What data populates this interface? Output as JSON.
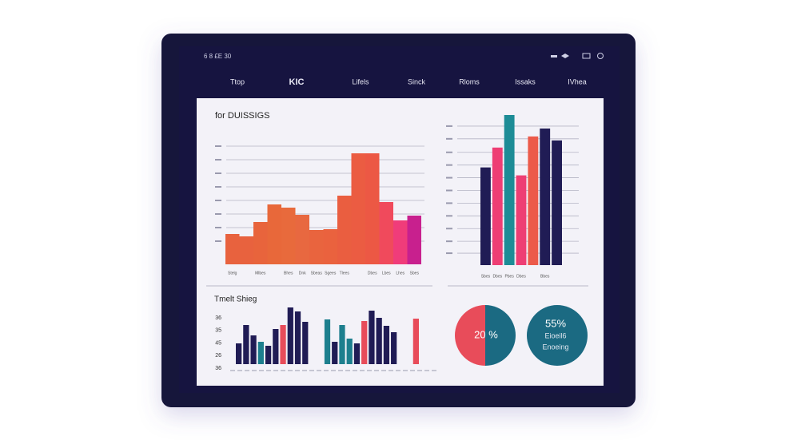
{
  "status_bar": {
    "left": "6 8 £E   30"
  },
  "nav": [
    "Ttop",
    "KIC",
    "Lifels",
    "Sinck",
    "Rloms",
    "Issaks",
    "IVhea"
  ],
  "panel": {
    "title": "for DUISSIGS",
    "subtitle": "Tmelt Shieg"
  },
  "chart_data": [
    {
      "type": "bar",
      "categories": [
        "Stelg",
        null,
        "Mlbes",
        null,
        "Bhes",
        "Dnk",
        "Sbeas",
        "Sgees",
        "Tlees",
        null,
        "Dbes",
        "Lbes",
        "Lhes",
        "Sbes"
      ],
      "values": [
        38,
        35,
        53,
        75,
        71,
        62,
        43,
        44,
        86,
        139,
        139,
        78,
        55,
        61
      ],
      "colors": [
        "#e8623e",
        "#e8623e",
        "#e8643c",
        "#e8683a",
        "#e86a3c",
        "#e86840",
        "#e9643e",
        "#ea623e",
        "#ea5e40",
        "#eb5c42",
        "#ec5844",
        "#f04a5c",
        "#f03c7a",
        "#c8208e"
      ],
      "ylim": [
        0,
        150
      ],
      "yticks": [
        29,
        46,
        63,
        80,
        97,
        114,
        131,
        148
      ],
      "grid": true
    },
    {
      "type": "bar",
      "categories": [
        "Sbes",
        "Dbes",
        "Pbes",
        "Dbes",
        null,
        "Bbes",
        null
      ],
      "values": [
        123,
        148,
        189,
        113,
        162,
        172,
        157
      ],
      "colors": [
        "#201c55",
        "#ee3e74",
        "#1d8c96",
        "#ee3e74",
        "#ec5a4a",
        "#201c55",
        "#201c55"
      ],
      "ylim": [
        0,
        190
      ],
      "yticks": [
        15,
        30,
        46,
        62,
        78,
        94,
        110,
        126,
        142,
        159,
        175
      ],
      "grid": true
    },
    {
      "type": "bar",
      "side_labels": [
        "36",
        "35",
        "45",
        "26",
        "36"
      ],
      "values": [
        26,
        49,
        36,
        28,
        23,
        44,
        49,
        71,
        66,
        53,
        null,
        null,
        56,
        28,
        49,
        32,
        26,
        54,
        67,
        58,
        48,
        40,
        null,
        null,
        57
      ],
      "colors": [
        "#201c55",
        "#201c55",
        "#201c55",
        "#1d7f8e",
        "#201c55",
        "#201c55",
        "#e84c5a",
        "#201c55",
        "#201c55",
        "#201c55",
        null,
        null,
        "#1d7f8e",
        "#201c55",
        "#1d7f8e",
        "#1d7f8e",
        "#201c55",
        "#e84c5a",
        "#201c55",
        "#201c55",
        "#201c55",
        "#201c55",
        null,
        null,
        "#e84c5a"
      ],
      "ylim": [
        0,
        75
      ]
    }
  ],
  "kpis": [
    {
      "value": "20 %"
    },
    {
      "value": "55%",
      "lines": [
        "Eioeil6",
        "Enoeing"
      ]
    }
  ]
}
